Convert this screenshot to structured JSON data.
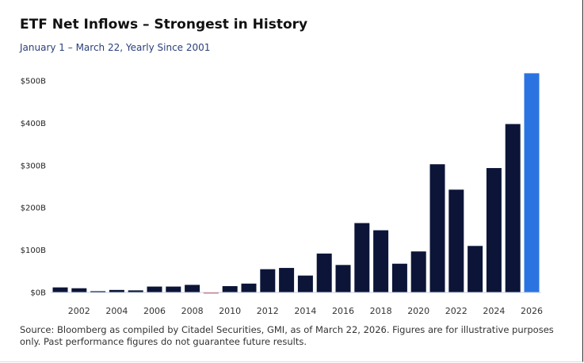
{
  "chart_data": {
    "type": "bar",
    "title": "ETF Net Inflows – Strongest in History",
    "subtitle": "January 1 – March 22, Yearly Since 2001",
    "xlabel": "",
    "ylabel": "",
    "categories": [
      "2001",
      "2002",
      "2003",
      "2004",
      "2005",
      "2006",
      "2007",
      "2008",
      "2009",
      "2010",
      "2011",
      "2012",
      "2013",
      "2014",
      "2015",
      "2016",
      "2017",
      "2018",
      "2019",
      "2020",
      "2021",
      "2022",
      "2023",
      "2024",
      "2025",
      "2026"
    ],
    "values": [
      11,
      9,
      2,
      5,
      4,
      13,
      13,
      17,
      -3,
      14,
      20,
      54,
      57,
      39,
      91,
      64,
      163,
      146,
      67,
      96,
      302,
      242,
      109,
      293,
      397,
      517
    ],
    "unit": "$B",
    "ylim": [
      0,
      500
    ],
    "yticks": [
      0,
      100,
      200,
      300,
      400,
      500
    ],
    "ytick_labels": [
      "$0B",
      "$100B",
      "$200B",
      "$300B",
      "$400B",
      "$500B"
    ],
    "xtick_labels": [
      "2002",
      "2004",
      "2006",
      "2008",
      "2010",
      "2012",
      "2014",
      "2016",
      "2018",
      "2020",
      "2022",
      "2024",
      "2026"
    ],
    "grid": false,
    "legend": "none",
    "colors": {
      "default": "#0c1538",
      "negative": "#d03030",
      "highlight": "#2b73e0",
      "baseline": "#c9d3ea"
    }
  },
  "source": "Source: Bloomberg as compiled by Citadel Securities, GMI, as of March 22, 2026. Figures are for illustrative purposes only. Past performance figures do not guarantee future results."
}
